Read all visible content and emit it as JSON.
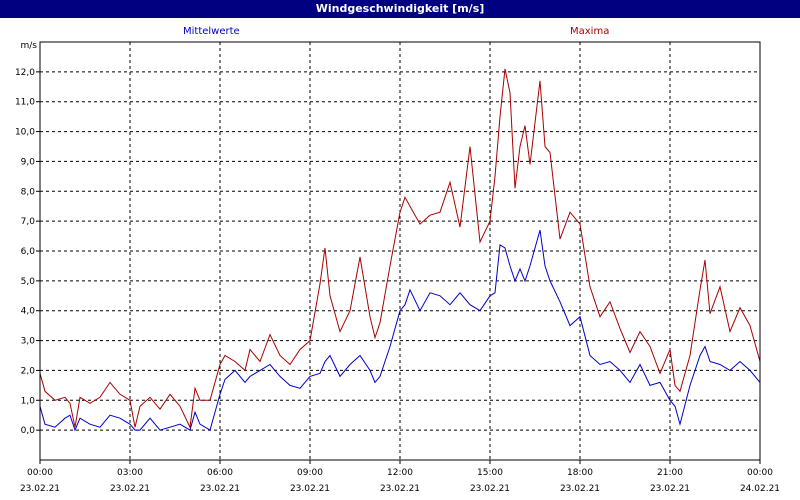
{
  "window": {
    "title": "Windgeschwindigkeit [m/s]"
  },
  "colors": {
    "titlebar": "#000080",
    "mean": "#0000cc",
    "max": "#aa0000",
    "grid": "#000000"
  },
  "chart_data": {
    "type": "line",
    "title": "Windgeschwindigkeit [m/s]",
    "ylabel": "m/s",
    "xlabel": "",
    "ylim": [
      -1.0,
      13.0
    ],
    "xlim": [
      "23.02.21 00:00",
      "24.02.21 00:00"
    ],
    "grid": true,
    "legend_placement": "top",
    "y_ticks": [
      "0,0",
      "1,0",
      "2,0",
      "3,0",
      "4,0",
      "5,0",
      "6,0",
      "7,0",
      "8,0",
      "9,0",
      "10,0",
      "11,0",
      "12,0"
    ],
    "x_ticks": [
      {
        "time": "00:00",
        "date": "23.02.21"
      },
      {
        "time": "03:00",
        "date": "23.02.21"
      },
      {
        "time": "06:00",
        "date": "23.02.21"
      },
      {
        "time": "09:00",
        "date": "23.02.21"
      },
      {
        "time": "12:00",
        "date": "23.02.21"
      },
      {
        "time": "15:00",
        "date": "23.02.21"
      },
      {
        "time": "18:00",
        "date": "23.02.21"
      },
      {
        "time": "21:00",
        "date": "23.02.21"
      },
      {
        "time": "00:00",
        "date": "24.02.21"
      }
    ],
    "series": [
      {
        "name": "Mittelwerte",
        "color": "#0000cc",
        "points": [
          [
            "00:00",
            0.8
          ],
          [
            "00:10",
            0.2
          ],
          [
            "00:30",
            0.1
          ],
          [
            "00:50",
            0.4
          ],
          [
            "01:00",
            0.5
          ],
          [
            "01:10",
            0.0
          ],
          [
            "01:20",
            0.4
          ],
          [
            "01:40",
            0.2
          ],
          [
            "02:00",
            0.1
          ],
          [
            "02:20",
            0.5
          ],
          [
            "02:40",
            0.4
          ],
          [
            "03:00",
            0.2
          ],
          [
            "03:10",
            0.0
          ],
          [
            "03:20",
            0.0
          ],
          [
            "03:40",
            0.4
          ],
          [
            "04:00",
            0.0
          ],
          [
            "04:20",
            0.1
          ],
          [
            "04:40",
            0.2
          ],
          [
            "05:00",
            0.0
          ],
          [
            "05:10",
            0.6
          ],
          [
            "05:20",
            0.2
          ],
          [
            "05:40",
            0.0
          ],
          [
            "06:00",
            1.2
          ],
          [
            "06:10",
            1.7
          ],
          [
            "06:30",
            2.0
          ],
          [
            "06:50",
            1.6
          ],
          [
            "07:00",
            1.8
          ],
          [
            "07:20",
            2.0
          ],
          [
            "07:40",
            2.2
          ],
          [
            "08:00",
            1.8
          ],
          [
            "08:20",
            1.5
          ],
          [
            "08:40",
            1.4
          ],
          [
            "09:00",
            1.8
          ],
          [
            "09:20",
            1.9
          ],
          [
            "09:30",
            2.3
          ],
          [
            "09:40",
            2.5
          ],
          [
            "10:00",
            1.8
          ],
          [
            "10:20",
            2.2
          ],
          [
            "10:40",
            2.5
          ],
          [
            "11:00",
            2.0
          ],
          [
            "11:10",
            1.6
          ],
          [
            "11:20",
            1.8
          ],
          [
            "11:40",
            2.8
          ],
          [
            "12:00",
            4.0
          ],
          [
            "12:10",
            4.2
          ],
          [
            "12:20",
            4.7
          ],
          [
            "12:40",
            4.0
          ],
          [
            "13:00",
            4.6
          ],
          [
            "13:20",
            4.5
          ],
          [
            "13:40",
            4.2
          ],
          [
            "14:00",
            4.6
          ],
          [
            "14:20",
            4.2
          ],
          [
            "14:40",
            4.0
          ],
          [
            "15:00",
            4.5
          ],
          [
            "15:10",
            4.6
          ],
          [
            "15:20",
            6.2
          ],
          [
            "15:30",
            6.1
          ],
          [
            "15:40",
            5.5
          ],
          [
            "15:50",
            5.0
          ],
          [
            "16:00",
            5.4
          ],
          [
            "16:10",
            5.0
          ],
          [
            "16:20",
            5.5
          ],
          [
            "16:40",
            6.7
          ],
          [
            "16:50",
            5.5
          ],
          [
            "17:00",
            5.0
          ],
          [
            "17:20",
            4.3
          ],
          [
            "17:40",
            3.5
          ],
          [
            "18:00",
            3.8
          ],
          [
            "18:20",
            2.5
          ],
          [
            "18:40",
            2.2
          ],
          [
            "19:00",
            2.3
          ],
          [
            "19:20",
            2.0
          ],
          [
            "19:40",
            1.6
          ],
          [
            "20:00",
            2.2
          ],
          [
            "20:20",
            1.5
          ],
          [
            "20:40",
            1.6
          ],
          [
            "21:00",
            1.0
          ],
          [
            "21:10",
            0.8
          ],
          [
            "21:20",
            0.2
          ],
          [
            "21:40",
            1.5
          ],
          [
            "22:00",
            2.5
          ],
          [
            "22:10",
            2.8
          ],
          [
            "22:20",
            2.3
          ],
          [
            "22:40",
            2.2
          ],
          [
            "23:00",
            2.0
          ],
          [
            "23:20",
            2.3
          ],
          [
            "23:40",
            2.0
          ],
          [
            "00:00",
            1.6
          ]
        ]
      },
      {
        "name": "Maxima",
        "color": "#aa0000",
        "points": [
          [
            "00:00",
            1.9
          ],
          [
            "00:10",
            1.3
          ],
          [
            "00:30",
            1.0
          ],
          [
            "00:50",
            1.1
          ],
          [
            "01:00",
            0.9
          ],
          [
            "01:10",
            0.1
          ],
          [
            "01:20",
            1.1
          ],
          [
            "01:40",
            0.9
          ],
          [
            "02:00",
            1.1
          ],
          [
            "02:20",
            1.6
          ],
          [
            "02:40",
            1.2
          ],
          [
            "03:00",
            1.0
          ],
          [
            "03:10",
            0.1
          ],
          [
            "03:20",
            0.8
          ],
          [
            "03:40",
            1.1
          ],
          [
            "04:00",
            0.7
          ],
          [
            "04:20",
            1.2
          ],
          [
            "04:40",
            0.8
          ],
          [
            "05:00",
            0.1
          ],
          [
            "05:10",
            1.4
          ],
          [
            "05:20",
            1.0
          ],
          [
            "05:40",
            1.0
          ],
          [
            "06:00",
            2.2
          ],
          [
            "06:10",
            2.5
          ],
          [
            "06:30",
            2.3
          ],
          [
            "06:50",
            2.0
          ],
          [
            "07:00",
            2.7
          ],
          [
            "07:20",
            2.3
          ],
          [
            "07:40",
            3.2
          ],
          [
            "08:00",
            2.5
          ],
          [
            "08:20",
            2.2
          ],
          [
            "08:40",
            2.7
          ],
          [
            "09:00",
            3.0
          ],
          [
            "09:20",
            4.9
          ],
          [
            "09:30",
            6.1
          ],
          [
            "09:40",
            4.5
          ],
          [
            "10:00",
            3.3
          ],
          [
            "10:20",
            4.0
          ],
          [
            "10:40",
            5.8
          ],
          [
            "11:00",
            3.8
          ],
          [
            "11:10",
            3.1
          ],
          [
            "11:20",
            3.6
          ],
          [
            "11:40",
            5.5
          ],
          [
            "12:00",
            7.3
          ],
          [
            "12:10",
            7.8
          ],
          [
            "12:20",
            7.5
          ],
          [
            "12:40",
            6.9
          ],
          [
            "13:00",
            7.2
          ],
          [
            "13:20",
            7.3
          ],
          [
            "13:40",
            8.3
          ],
          [
            "14:00",
            6.8
          ],
          [
            "14:20",
            9.5
          ],
          [
            "14:40",
            6.3
          ],
          [
            "15:00",
            7.0
          ],
          [
            "15:10",
            8.5
          ],
          [
            "15:20",
            10.5
          ],
          [
            "15:30",
            12.1
          ],
          [
            "15:40",
            11.3
          ],
          [
            "15:50",
            8.1
          ],
          [
            "16:00",
            9.5
          ],
          [
            "16:10",
            10.2
          ],
          [
            "16:20",
            8.9
          ],
          [
            "16:40",
            11.7
          ],
          [
            "16:50",
            9.5
          ],
          [
            "17:00",
            9.3
          ],
          [
            "17:20",
            6.4
          ],
          [
            "17:40",
            7.3
          ],
          [
            "18:00",
            6.9
          ],
          [
            "18:20",
            4.8
          ],
          [
            "18:40",
            3.8
          ],
          [
            "19:00",
            4.3
          ],
          [
            "19:20",
            3.4
          ],
          [
            "19:40",
            2.6
          ],
          [
            "20:00",
            3.3
          ],
          [
            "20:20",
            2.8
          ],
          [
            "20:40",
            1.9
          ],
          [
            "21:00",
            2.7
          ],
          [
            "21:10",
            1.5
          ],
          [
            "21:20",
            1.3
          ],
          [
            "21:40",
            2.5
          ],
          [
            "22:00",
            4.7
          ],
          [
            "22:10",
            5.7
          ],
          [
            "22:20",
            3.9
          ],
          [
            "22:40",
            4.8
          ],
          [
            "23:00",
            3.3
          ],
          [
            "23:20",
            4.1
          ],
          [
            "23:40",
            3.5
          ],
          [
            "00:00",
            2.3
          ]
        ]
      }
    ]
  }
}
